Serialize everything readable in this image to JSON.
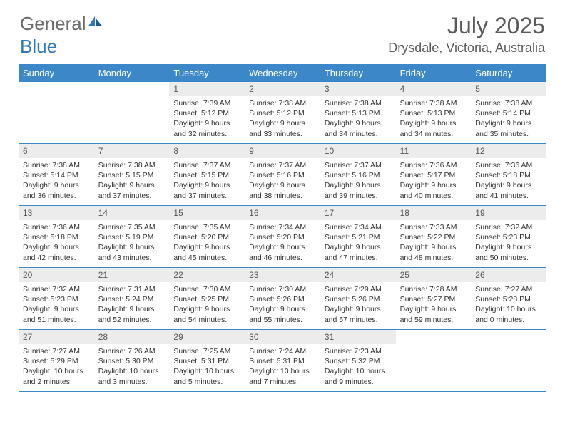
{
  "brand": {
    "part1": "General",
    "part2": "Blue"
  },
  "title": "July 2025",
  "location": "Drysdale, Victoria, Australia",
  "colors": {
    "header_blue": "#3b87c8",
    "text_gray": "#5a5a5a",
    "cell_header_bg": "#ececec"
  },
  "dow": [
    "Sunday",
    "Monday",
    "Tuesday",
    "Wednesday",
    "Thursday",
    "Friday",
    "Saturday"
  ],
  "weeks": [
    [
      {
        "n": "",
        "sr": "",
        "ss": "",
        "dl": ""
      },
      {
        "n": "",
        "sr": "",
        "ss": "",
        "dl": ""
      },
      {
        "n": "1",
        "sr": "Sunrise: 7:39 AM",
        "ss": "Sunset: 5:12 PM",
        "dl": "Daylight: 9 hours and 32 minutes."
      },
      {
        "n": "2",
        "sr": "Sunrise: 7:38 AM",
        "ss": "Sunset: 5:12 PM",
        "dl": "Daylight: 9 hours and 33 minutes."
      },
      {
        "n": "3",
        "sr": "Sunrise: 7:38 AM",
        "ss": "Sunset: 5:13 PM",
        "dl": "Daylight: 9 hours and 34 minutes."
      },
      {
        "n": "4",
        "sr": "Sunrise: 7:38 AM",
        "ss": "Sunset: 5:13 PM",
        "dl": "Daylight: 9 hours and 34 minutes."
      },
      {
        "n": "5",
        "sr": "Sunrise: 7:38 AM",
        "ss": "Sunset: 5:14 PM",
        "dl": "Daylight: 9 hours and 35 minutes."
      }
    ],
    [
      {
        "n": "6",
        "sr": "Sunrise: 7:38 AM",
        "ss": "Sunset: 5:14 PM",
        "dl": "Daylight: 9 hours and 36 minutes."
      },
      {
        "n": "7",
        "sr": "Sunrise: 7:38 AM",
        "ss": "Sunset: 5:15 PM",
        "dl": "Daylight: 9 hours and 37 minutes."
      },
      {
        "n": "8",
        "sr": "Sunrise: 7:37 AM",
        "ss": "Sunset: 5:15 PM",
        "dl": "Daylight: 9 hours and 37 minutes."
      },
      {
        "n": "9",
        "sr": "Sunrise: 7:37 AM",
        "ss": "Sunset: 5:16 PM",
        "dl": "Daylight: 9 hours and 38 minutes."
      },
      {
        "n": "10",
        "sr": "Sunrise: 7:37 AM",
        "ss": "Sunset: 5:16 PM",
        "dl": "Daylight: 9 hours and 39 minutes."
      },
      {
        "n": "11",
        "sr": "Sunrise: 7:36 AM",
        "ss": "Sunset: 5:17 PM",
        "dl": "Daylight: 9 hours and 40 minutes."
      },
      {
        "n": "12",
        "sr": "Sunrise: 7:36 AM",
        "ss": "Sunset: 5:18 PM",
        "dl": "Daylight: 9 hours and 41 minutes."
      }
    ],
    [
      {
        "n": "13",
        "sr": "Sunrise: 7:36 AM",
        "ss": "Sunset: 5:18 PM",
        "dl": "Daylight: 9 hours and 42 minutes."
      },
      {
        "n": "14",
        "sr": "Sunrise: 7:35 AM",
        "ss": "Sunset: 5:19 PM",
        "dl": "Daylight: 9 hours and 43 minutes."
      },
      {
        "n": "15",
        "sr": "Sunrise: 7:35 AM",
        "ss": "Sunset: 5:20 PM",
        "dl": "Daylight: 9 hours and 45 minutes."
      },
      {
        "n": "16",
        "sr": "Sunrise: 7:34 AM",
        "ss": "Sunset: 5:20 PM",
        "dl": "Daylight: 9 hours and 46 minutes."
      },
      {
        "n": "17",
        "sr": "Sunrise: 7:34 AM",
        "ss": "Sunset: 5:21 PM",
        "dl": "Daylight: 9 hours and 47 minutes."
      },
      {
        "n": "18",
        "sr": "Sunrise: 7:33 AM",
        "ss": "Sunset: 5:22 PM",
        "dl": "Daylight: 9 hours and 48 minutes."
      },
      {
        "n": "19",
        "sr": "Sunrise: 7:32 AM",
        "ss": "Sunset: 5:23 PM",
        "dl": "Daylight: 9 hours and 50 minutes."
      }
    ],
    [
      {
        "n": "20",
        "sr": "Sunrise: 7:32 AM",
        "ss": "Sunset: 5:23 PM",
        "dl": "Daylight: 9 hours and 51 minutes."
      },
      {
        "n": "21",
        "sr": "Sunrise: 7:31 AM",
        "ss": "Sunset: 5:24 PM",
        "dl": "Daylight: 9 hours and 52 minutes."
      },
      {
        "n": "22",
        "sr": "Sunrise: 7:30 AM",
        "ss": "Sunset: 5:25 PM",
        "dl": "Daylight: 9 hours and 54 minutes."
      },
      {
        "n": "23",
        "sr": "Sunrise: 7:30 AM",
        "ss": "Sunset: 5:26 PM",
        "dl": "Daylight: 9 hours and 55 minutes."
      },
      {
        "n": "24",
        "sr": "Sunrise: 7:29 AM",
        "ss": "Sunset: 5:26 PM",
        "dl": "Daylight: 9 hours and 57 minutes."
      },
      {
        "n": "25",
        "sr": "Sunrise: 7:28 AM",
        "ss": "Sunset: 5:27 PM",
        "dl": "Daylight: 9 hours and 59 minutes."
      },
      {
        "n": "26",
        "sr": "Sunrise: 7:27 AM",
        "ss": "Sunset: 5:28 PM",
        "dl": "Daylight: 10 hours and 0 minutes."
      }
    ],
    [
      {
        "n": "27",
        "sr": "Sunrise: 7:27 AM",
        "ss": "Sunset: 5:29 PM",
        "dl": "Daylight: 10 hours and 2 minutes."
      },
      {
        "n": "28",
        "sr": "Sunrise: 7:26 AM",
        "ss": "Sunset: 5:30 PM",
        "dl": "Daylight: 10 hours and 3 minutes."
      },
      {
        "n": "29",
        "sr": "Sunrise: 7:25 AM",
        "ss": "Sunset: 5:31 PM",
        "dl": "Daylight: 10 hours and 5 minutes."
      },
      {
        "n": "30",
        "sr": "Sunrise: 7:24 AM",
        "ss": "Sunset: 5:31 PM",
        "dl": "Daylight: 10 hours and 7 minutes."
      },
      {
        "n": "31",
        "sr": "Sunrise: 7:23 AM",
        "ss": "Sunset: 5:32 PM",
        "dl": "Daylight: 10 hours and 9 minutes."
      },
      {
        "n": "",
        "sr": "",
        "ss": "",
        "dl": ""
      },
      {
        "n": "",
        "sr": "",
        "ss": "",
        "dl": ""
      }
    ]
  ]
}
